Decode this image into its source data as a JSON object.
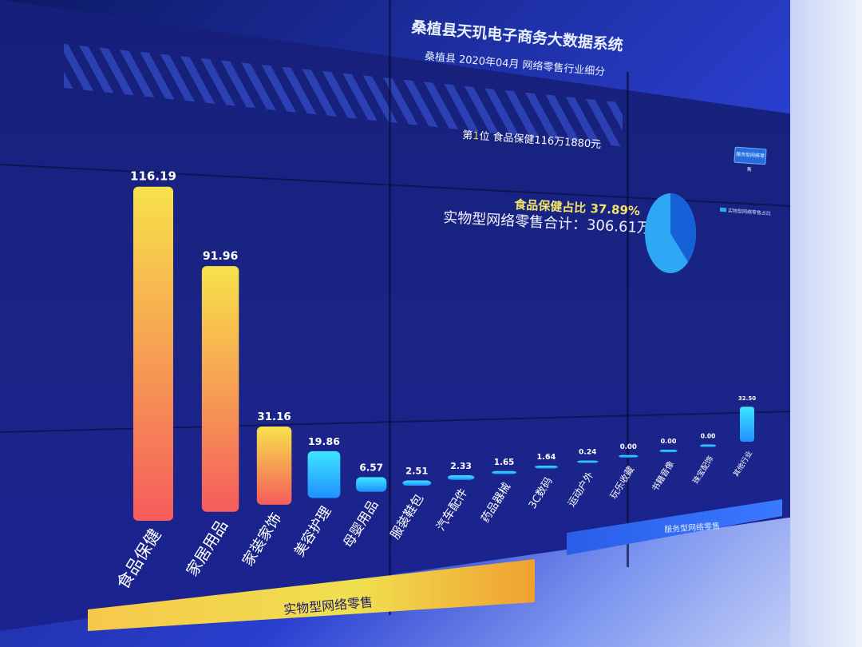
{
  "header": {
    "system_title": "桑植县天玑电子商务大数据系统",
    "subtitle": "桑植县 2020年04月 网络零售行业细分"
  },
  "ranking": {
    "prefix": "第",
    "rank": "1",
    "suffix": "位 食品保健116万1880元"
  },
  "switch_button": {
    "label": "服务型网络零售"
  },
  "summary": {
    "share_text": "食品保健占比 37.89%",
    "total_text": "实物型网络零售合计：306.61万元"
  },
  "pie": {
    "legend_label": "实物型网络零售占比",
    "share": 37.89
  },
  "bands": {
    "physical_label": "实物型网络零售",
    "service_label": "服务型网络零售"
  },
  "colors": {
    "bar_yellow_top": "#f7e24a",
    "bar_orange_bottom": "#f65c5c",
    "bar_cyan_top": "#3ee6ff",
    "bar_blue_bottom": "#1e90ff",
    "label_white": "#ffffff"
  },
  "chart_data": {
    "type": "bar",
    "categories": [
      "食品保健",
      "家居用品",
      "家装家饰",
      "美容护理",
      "母婴用品",
      "服装鞋包",
      "汽车配件",
      "药品器械",
      "3C数码",
      "运动户外",
      "玩乐收藏",
      "书籍音像",
      "珠宝配饰",
      "其他行业"
    ],
    "values": [
      116.19,
      91.96,
      31.16,
      19.86,
      6.57,
      2.51,
      2.33,
      1.65,
      1.64,
      0.24,
      0.0,
      0.0,
      0.0,
      32.5
    ],
    "value_labels": [
      "116.19",
      "91.96",
      "31.16",
      "19.86",
      "6.57",
      "2.51",
      "2.33",
      "1.65",
      "1.64",
      "0.24",
      "0.00",
      "0.00",
      "0.00",
      "32.50"
    ],
    "title": "",
    "xlabel": "",
    "ylabel": "",
    "ylim": [
      0,
      120
    ],
    "grid": false,
    "groups": [
      {
        "name": "实物型网络零售",
        "range": [
          0,
          9
        ]
      },
      {
        "name": "服务型网络零售",
        "range": [
          10,
          13
        ]
      }
    ]
  }
}
